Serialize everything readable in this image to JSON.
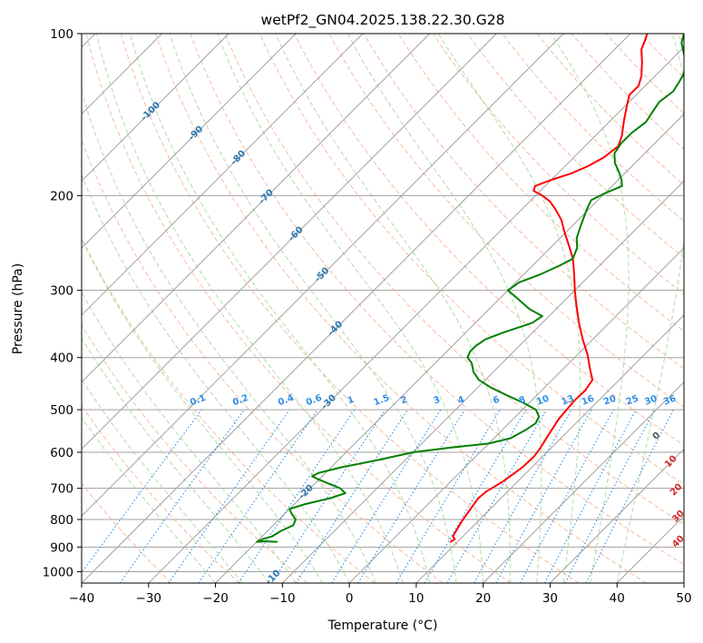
{
  "chart_data": {
    "type": "line",
    "title": "wetPf2_GN04.2025.138.22.30.G28",
    "xlabel": "Temperature (°C)",
    "ylabel": "Pressure (hPa)",
    "xlim": [
      -40,
      50
    ],
    "ylim": [
      1050,
      100
    ],
    "y_scale": "log",
    "grid": true,
    "x_ticks": [
      -40,
      -30,
      -20,
      -10,
      0,
      10,
      20,
      30,
      40,
      50
    ],
    "y_ticks": [
      100,
      200,
      300,
      400,
      500,
      600,
      700,
      800,
      900,
      1000
    ],
    "colors": {
      "temperature": "#ff0000",
      "dewpoint": "#008000",
      "isotherm": "#a0a0a0",
      "dry_adiabat": "#f4a582",
      "moist_adiabat": "#a6d49c",
      "mixing_ratio": "#2f8ee8",
      "isotherm_label": "#2a78b0",
      "dry_adiabat_label": "#d62728"
    },
    "series": [
      {
        "key": "temperature",
        "points": [
          [
            9.0,
            880
          ],
          [
            9.2,
            870
          ],
          [
            8.5,
            860
          ],
          [
            8.0,
            830
          ],
          [
            7.5,
            800
          ],
          [
            7.0,
            760
          ],
          [
            6.6,
            730
          ],
          [
            6.8,
            710
          ],
          [
            7.8,
            680
          ],
          [
            8.6,
            640
          ],
          [
            8.7,
            610
          ],
          [
            8.4,
            590
          ],
          [
            7.7,
            560
          ],
          [
            6.8,
            520
          ],
          [
            6.6,
            500
          ],
          [
            6.4,
            480
          ],
          [
            6.5,
            460
          ],
          [
            6.0,
            440
          ],
          [
            4.0,
            420
          ],
          [
            1.5,
            395
          ],
          [
            -1.5,
            370
          ],
          [
            -4.5,
            345
          ],
          [
            -7.5,
            320
          ],
          [
            -10.0,
            300
          ],
          [
            -12.5,
            280
          ],
          [
            -15.0,
            262
          ],
          [
            -17.5,
            248
          ],
          [
            -20.0,
            235
          ],
          [
            -22.5,
            222
          ],
          [
            -25.0,
            212
          ],
          [
            -27.0,
            205
          ],
          [
            -29.0,
            200
          ],
          [
            -31.0,
            196
          ],
          [
            -31.5,
            192
          ],
          [
            -30.0,
            187
          ],
          [
            -28.0,
            182
          ],
          [
            -26.5,
            176
          ],
          [
            -25.5,
            170
          ],
          [
            -25.0,
            162
          ],
          [
            -26.0,
            155
          ],
          [
            -28.0,
            145
          ],
          [
            -30.0,
            135
          ],
          [
            -31.0,
            130
          ],
          [
            -31.0,
            125
          ],
          [
            -32.0,
            120
          ],
          [
            -34.0,
            113
          ],
          [
            -36.0,
            107
          ],
          [
            -37.0,
            102
          ],
          [
            -37.5,
            100
          ]
        ]
      },
      {
        "key": "dewpoint",
        "points": [
          [
            -17.0,
            880
          ],
          [
            -19.0,
            878
          ],
          [
            -20.0,
            880
          ],
          [
            -19.5,
            870
          ],
          [
            -18.5,
            860
          ],
          [
            -18.0,
            840
          ],
          [
            -17.0,
            820
          ],
          [
            -17.5,
            800
          ],
          [
            -19.0,
            780
          ],
          [
            -20.0,
            765
          ],
          [
            -18.5,
            750
          ],
          [
            -15.5,
            730
          ],
          [
            -14.0,
            715
          ],
          [
            -15.5,
            700
          ],
          [
            -19.0,
            680
          ],
          [
            -21.5,
            665
          ],
          [
            -21.0,
            655
          ],
          [
            -18.5,
            640
          ],
          [
            -14.0,
            620
          ],
          [
            -10.0,
            600
          ],
          [
            -5.0,
            588
          ],
          [
            0.0,
            578
          ],
          [
            2.5,
            565
          ],
          [
            3.5,
            545
          ],
          [
            4.0,
            530
          ],
          [
            3.5,
            515
          ],
          [
            2.0,
            500
          ],
          [
            -1.0,
            485
          ],
          [
            -4.5,
            470
          ],
          [
            -8.0,
            455
          ],
          [
            -11.0,
            440
          ],
          [
            -13.0,
            425
          ],
          [
            -14.5,
            410
          ],
          [
            -16.0,
            400
          ],
          [
            -16.5,
            390
          ],
          [
            -16.5,
            380
          ],
          [
            -16.0,
            370
          ],
          [
            -14.5,
            360
          ],
          [
            -11.5,
            345
          ],
          [
            -11.0,
            335
          ],
          [
            -14.0,
            325
          ],
          [
            -17.5,
            310
          ],
          [
            -20.0,
            300
          ],
          [
            -19.5,
            290
          ],
          [
            -17.5,
            280
          ],
          [
            -16.0,
            270
          ],
          [
            -15.0,
            262
          ],
          [
            -16.0,
            250
          ],
          [
            -17.5,
            240
          ],
          [
            -18.5,
            230
          ],
          [
            -19.5,
            220
          ],
          [
            -20.5,
            210
          ],
          [
            -21.0,
            204
          ],
          [
            -20.0,
            198
          ],
          [
            -18.5,
            192
          ],
          [
            -19.5,
            187
          ],
          [
            -21.0,
            181
          ],
          [
            -23.0,
            174
          ],
          [
            -24.5,
            167
          ],
          [
            -25.0,
            160
          ],
          [
            -25.0,
            153
          ],
          [
            -24.5,
            146
          ],
          [
            -25.0,
            140
          ],
          [
            -25.5,
            134
          ],
          [
            -25.0,
            128
          ],
          [
            -25.5,
            123
          ],
          [
            -26.0,
            119
          ],
          [
            -27.0,
            114
          ],
          [
            -29.0,
            109
          ],
          [
            -31.0,
            104
          ],
          [
            -32.0,
            100
          ]
        ]
      }
    ],
    "isotherm_labels": [
      "-100",
      "-90",
      "-80",
      "-70",
      "-60",
      "-50",
      "-40",
      "-30",
      "-20",
      "-10"
    ],
    "isotherm_label_values": [
      -100,
      -90,
      -80,
      -70,
      -60,
      -50,
      -40,
      -30,
      -20,
      -10
    ],
    "dry_adiabat_labels": [
      "0",
      "10",
      "20",
      "30",
      "40"
    ],
    "dry_adiabat_label_values": [
      0,
      10,
      20,
      30,
      40
    ],
    "mixing_ratio_labels": [
      "0.1",
      "0.2",
      "0.4",
      "0.6",
      "1",
      "1.5",
      "2",
      "3",
      "4",
      "6",
      "8",
      "10",
      "13",
      "16",
      "20",
      "25",
      "30",
      "36"
    ],
    "mixing_ratio_values": [
      0.1,
      0.2,
      0.4,
      0.6,
      1,
      1.5,
      2,
      3,
      4,
      6,
      8,
      10,
      13,
      16,
      20,
      25,
      30,
      36
    ]
  }
}
